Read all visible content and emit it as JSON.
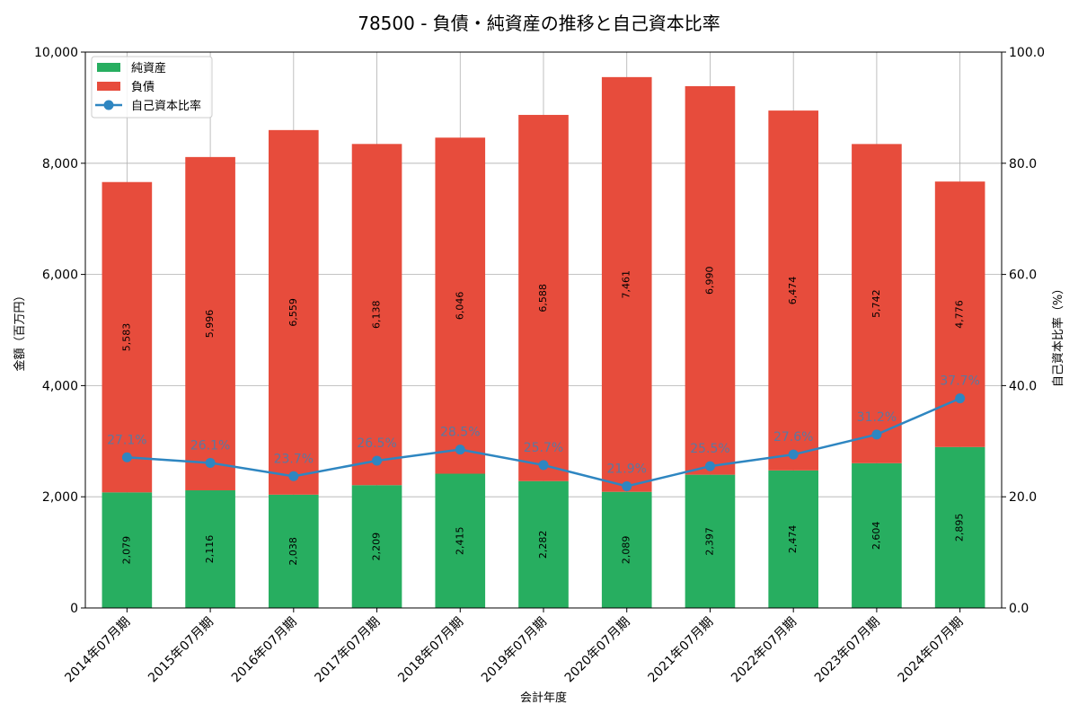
{
  "chart_data": {
    "type": "bar",
    "title": "78500 - 負債・純資産の推移と自己資本比率",
    "xlabel": "会計年度",
    "ylabel": "金額（百万円）",
    "ylabel_right": "自己資本比率（%）",
    "ylim": [
      0,
      10000
    ],
    "ylim_right": [
      0,
      100
    ],
    "yticks": [
      "0",
      "2,000",
      "4,000",
      "6,000",
      "8,000",
      "10,000"
    ],
    "yticks_right": [
      "0.0",
      "20.0",
      "40.0",
      "60.0",
      "80.0",
      "100.0"
    ],
    "grid": true,
    "legend_position": "top-left",
    "categories": [
      "2014年07月期",
      "2015年07月期",
      "2016年07月期",
      "2017年07月期",
      "2018年07月期",
      "2019年07月期",
      "2020年07月期",
      "2021年07月期",
      "2022年07月期",
      "2023年07月期",
      "2024年07月期"
    ],
    "series": [
      {
        "name": "純資産",
        "kind": "bar",
        "color": "#27ae60",
        "values": [
          2079,
          2116,
          2038,
          2209,
          2415,
          2282,
          2089,
          2397,
          2474,
          2604,
          2895
        ],
        "labels": [
          "2,079",
          "2,116",
          "2,038",
          "2,209",
          "2,415",
          "2,282",
          "2,089",
          "2,397",
          "2,474",
          "2,604",
          "2,895"
        ]
      },
      {
        "name": "負債",
        "kind": "bar",
        "color": "#e74c3c",
        "values": [
          5583,
          5996,
          6559,
          6138,
          6046,
          6588,
          7461,
          6990,
          6474,
          5742,
          4776
        ],
        "labels": [
          "5,583",
          "5,996",
          "6,559",
          "6,138",
          "6,046",
          "6,588",
          "7,461",
          "6,990",
          "6,474",
          "5,742",
          "4,776"
        ]
      },
      {
        "name": "自己資本比率",
        "kind": "line",
        "axis": "right",
        "color": "#2e86c1",
        "values": [
          27.1,
          26.1,
          23.7,
          26.5,
          28.5,
          25.7,
          21.9,
          25.5,
          27.6,
          31.2,
          37.7
        ],
        "labels": [
          "27.1%",
          "26.1%",
          "23.7%",
          "26.5%",
          "28.5%",
          "25.7%",
          "21.9%",
          "25.5%",
          "27.6%",
          "31.2%",
          "37.7%"
        ]
      }
    ]
  }
}
